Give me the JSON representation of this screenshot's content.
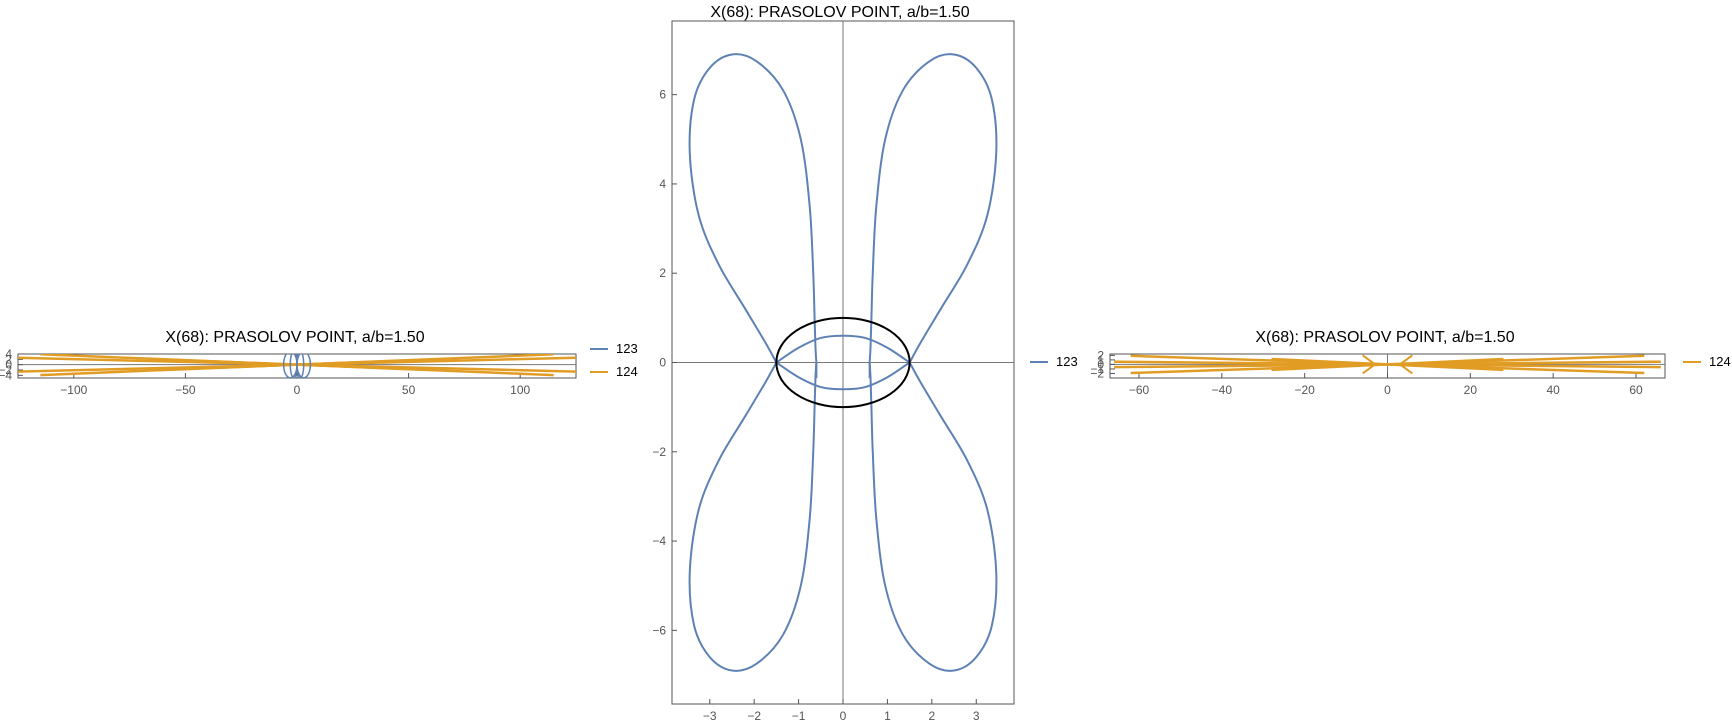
{
  "chart_data": [
    {
      "id": "left",
      "type": "line",
      "title": "X(68): PRASOLOV POINT, a/b=1.50",
      "xlim": [
        -125,
        125
      ],
      "ylim": [
        -5,
        4
      ],
      "xticks": [
        -100,
        -50,
        0,
        50,
        100
      ],
      "xtick_labels": [
        "−100",
        "−50",
        "0",
        "50",
        "100"
      ],
      "yticks": [
        -4,
        -2,
        0,
        2,
        4
      ],
      "ytick_labels": [
        "−4",
        "−2",
        "0",
        "2",
        "4"
      ],
      "grid": false,
      "legend_position": "right",
      "series": [
        {
          "name": "123",
          "color": "#5e81b5",
          "curve": "butterfly"
        },
        {
          "name": "124",
          "color": "#e19c24",
          "curve": "double-rays",
          "x": [
            -125,
            -115,
            -62,
            -10,
            -4,
            0,
            4,
            10,
            62,
            115,
            125
          ],
          "y": [
            -2.5,
            -3.9,
            -2.0,
            -0.5,
            -0.4,
            0,
            0.4,
            0.5,
            2.0,
            3.9,
            2.5
          ]
        }
      ]
    },
    {
      "id": "center",
      "type": "line",
      "title": "X(68): PRASOLOV POINT, a/b=1.50",
      "xlim": [
        -3.85,
        3.85
      ],
      "ylim": [
        -7.65,
        7.65
      ],
      "xticks": [
        -3,
        -2,
        -1,
        0,
        1,
        2,
        3
      ],
      "xtick_labels": [
        "−3",
        "−2",
        "−1",
        "0",
        "1",
        "2",
        "3"
      ],
      "yticks": [
        -6,
        -4,
        -2,
        0,
        2,
        4,
        6
      ],
      "ytick_labels": [
        "−6",
        "−4",
        "−2",
        "0",
        "2",
        "4",
        "6"
      ],
      "grid": false,
      "legend_position": "right",
      "ellipse": {
        "rx": 1.5,
        "ry": 1.0,
        "color": "#000000"
      },
      "series": [
        {
          "name": "123",
          "color": "#5e81b5",
          "curve": "butterfly",
          "lobe_extreme_points": [
            [
              2.5,
              6.9
            ],
            [
              3.45,
              4.7
            ],
            [
              0.65,
              0.6
            ],
            [
              0,
              0.6
            ],
            [
              1.5,
              0.0
            ],
            [
              2.5,
              -6.9
            ]
          ]
        }
      ]
    },
    {
      "id": "right",
      "type": "line",
      "title": "X(68): PRASOLOV POINT, a/b=1.50",
      "xlim": [
        -67,
        67
      ],
      "ylim": [
        -3,
        2.3
      ],
      "xticks": [
        -60,
        -40,
        -20,
        0,
        20,
        40,
        60
      ],
      "xtick_labels": [
        "−60",
        "−40",
        "−20",
        "0",
        "20",
        "40",
        "60"
      ],
      "yticks": [
        -2,
        -1,
        0,
        1,
        2
      ],
      "ytick_labels": [
        "−2",
        "−1",
        "0",
        "1",
        "2"
      ],
      "grid": false,
      "legend_position": "right",
      "series": [
        {
          "name": "124",
          "color": "#e19c24",
          "curve": "rays",
          "x": [
            -62,
            -24,
            -6,
            0,
            6,
            24,
            62
          ],
          "y": [
            -1.8,
            -0.6,
            -0.2,
            0,
            0.2,
            0.6,
            1.8
          ]
        }
      ]
    }
  ]
}
